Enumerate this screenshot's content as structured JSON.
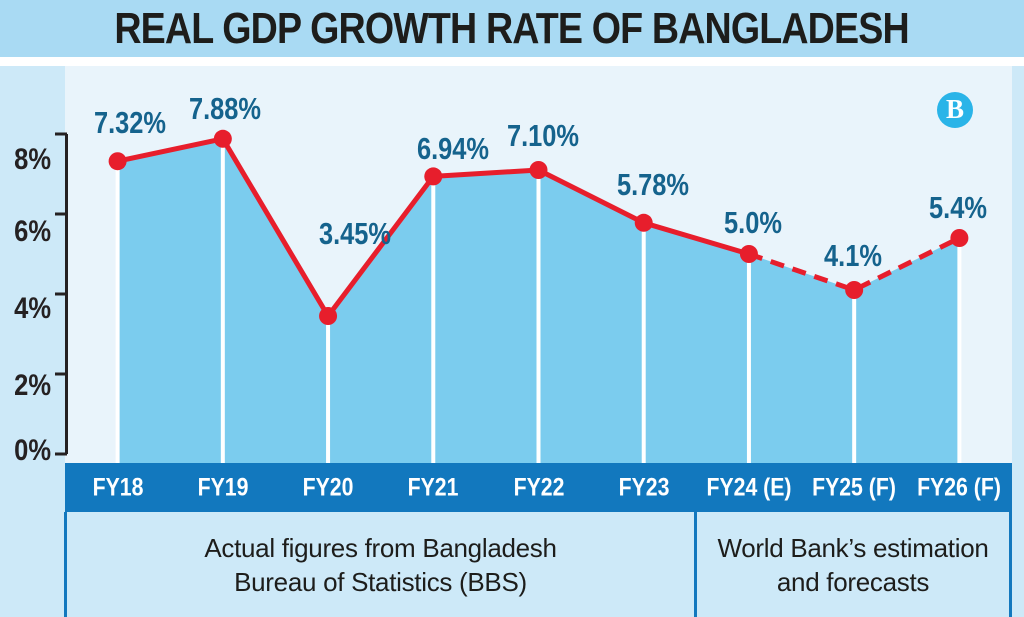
{
  "title": "REAL GDP GROWTH RATE OF BANGLADESH",
  "brand_logo": {
    "icon": "tbs-monogram-icon",
    "letter": "B"
  },
  "colors": {
    "title_band_bg": "#a9daf3",
    "title_text": "#1d1d1b",
    "panel_bg": "#cde9f8",
    "plot_bg": "#e9f4fb",
    "area_fill": "#7bccee",
    "axis_band_bg": "#1278be",
    "divider": "#1278be",
    "line_red": "#e71e2c",
    "value_label_text": "#15638d",
    "axis_text": "#252122",
    "band_text": "#ffffff",
    "footnote_text": "#1d1d1b",
    "logo_circle": "#2ab4e8",
    "column_separator": "#ffffff"
  },
  "chart_data": {
    "type": "area",
    "title": "REAL GDP GROWTH RATE OF BANGLADESH",
    "categories": [
      "FY18",
      "FY19",
      "FY20",
      "FY21",
      "FY22",
      "FY23",
      "FY24 (E)",
      "FY25 (F)",
      "FY26 (F)"
    ],
    "values": [
      7.32,
      7.88,
      3.45,
      6.94,
      7.1,
      5.78,
      5.0,
      4.1,
      5.4
    ],
    "value_labels": [
      "7.32%",
      "7.88%",
      "3.45%",
      "6.94%",
      "7.10%",
      "5.78%",
      "5.0%",
      "4.1%",
      "5.4%"
    ],
    "segment_styles": [
      "solid",
      "solid",
      "solid",
      "solid",
      "solid",
      "solid",
      "dashed",
      "dashed"
    ],
    "yticks": {
      "values": [
        8,
        6,
        4,
        2,
        0
      ],
      "labels": [
        "8%",
        "6%",
        "4%",
        "2%",
        "0%"
      ]
    },
    "ylim": [
      0,
      8.8
    ],
    "xlabel": "",
    "ylabel": "",
    "grid": false,
    "legend": false,
    "x_groups": [
      {
        "line1": "Actual figures from Bangladesh",
        "line2": "Bureau of Statistics (BBS)",
        "span": [
          "FY18",
          "FY23"
        ]
      },
      {
        "line1": "World Bank’s estimation",
        "line2": "and forecasts",
        "span": [
          "FY24 (E)",
          "FY26 (F)"
        ]
      }
    ]
  }
}
